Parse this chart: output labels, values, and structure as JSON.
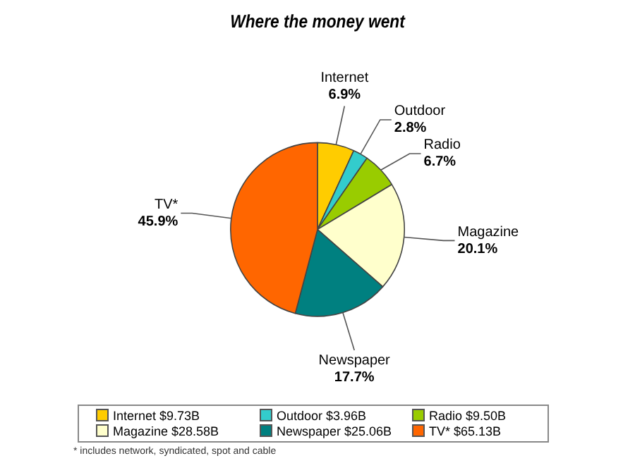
{
  "chart_data": {
    "type": "pie",
    "title": "Where the money went",
    "categories": [
      "Internet",
      "Outdoor",
      "Radio",
      "Magazine",
      "Newspaper",
      "TV*"
    ],
    "values": [
      9.73,
      3.96,
      9.5,
      28.58,
      25.06,
      65.13
    ],
    "value_labels": [
      "$9.73B",
      "$3.96B",
      "$9.50B",
      "$28.58B",
      "$25.06B",
      "$65.13B"
    ],
    "colors": [
      "#ffcc00",
      "#33cccc",
      "#99cc00",
      "#ffffcc",
      "#008080",
      "#ff6600"
    ],
    "legend": "bottom",
    "annotations": [
      {
        "text": "6.9%",
        "x": "Internet"
      },
      {
        "text": "2.8%",
        "x": "Outdoor"
      },
      {
        "text": "6.7%",
        "x": "Radio"
      },
      {
        "text": "20.1%",
        "x": "Magazine"
      },
      {
        "text": "17.7%",
        "x": "Newspaper"
      },
      {
        "text": "45.9%",
        "x": "TV*"
      },
      "* includes network, syndicated, spot and cable"
    ]
  }
}
